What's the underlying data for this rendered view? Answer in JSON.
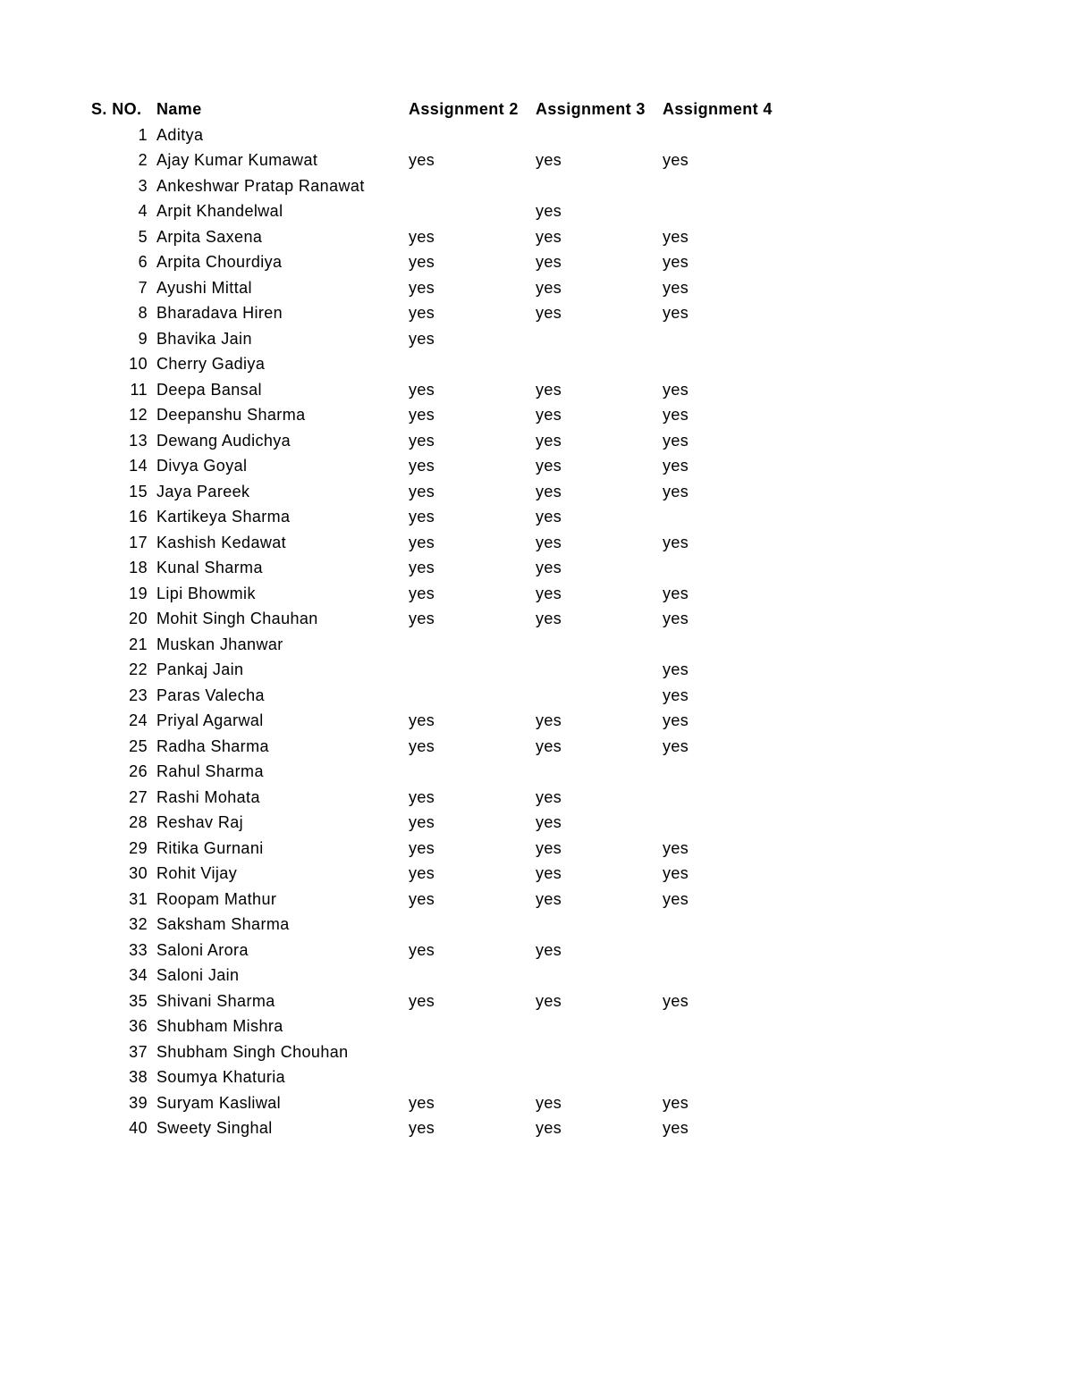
{
  "header": {
    "sno": "S. NO.",
    "name": "Name",
    "a2": "Assignment 2",
    "a3": "Assignment 3",
    "a4": "Assignment 4"
  },
  "rows": [
    {
      "sno": "1",
      "name": "Aditya",
      "a2": "",
      "a3": "",
      "a4": ""
    },
    {
      "sno": "2",
      "name": "Ajay Kumar Kumawat",
      "a2": "yes",
      "a3": "yes",
      "a4": "yes"
    },
    {
      "sno": "3",
      "name": "Ankeshwar Pratap Ranawat",
      "a2": "",
      "a3": "",
      "a4": ""
    },
    {
      "sno": "4",
      "name": "Arpit Khandelwal",
      "a2": "",
      "a3": "yes",
      "a4": ""
    },
    {
      "sno": "5",
      "name": "Arpita Saxena",
      "a2": "yes",
      "a3": "yes",
      "a4": "yes"
    },
    {
      "sno": "6",
      "name": "Arpita Chourdiya",
      "a2": "yes",
      "a3": "yes",
      "a4": "yes"
    },
    {
      "sno": "7",
      "name": "Ayushi Mittal",
      "a2": "yes",
      "a3": "yes",
      "a4": "yes"
    },
    {
      "sno": "8",
      "name": "Bharadava Hiren",
      "a2": "yes",
      "a3": "yes",
      "a4": "yes"
    },
    {
      "sno": "9",
      "name": "Bhavika Jain",
      "a2": "yes",
      "a3": "",
      "a4": ""
    },
    {
      "sno": "10",
      "name": "Cherry Gadiya",
      "a2": "",
      "a3": "",
      "a4": ""
    },
    {
      "sno": "11",
      "name": "Deepa Bansal",
      "a2": "yes",
      "a3": "yes",
      "a4": "yes"
    },
    {
      "sno": "12",
      "name": "Deepanshu Sharma",
      "a2": "yes",
      "a3": "yes",
      "a4": "yes"
    },
    {
      "sno": "13",
      "name": "Dewang Audichya",
      "a2": "yes",
      "a3": "yes",
      "a4": "yes"
    },
    {
      "sno": "14",
      "name": "Divya Goyal",
      "a2": "yes",
      "a3": "yes",
      "a4": "yes"
    },
    {
      "sno": "15",
      "name": "Jaya Pareek",
      "a2": "yes",
      "a3": "yes",
      "a4": "yes"
    },
    {
      "sno": "16",
      "name": "Kartikeya Sharma",
      "a2": "yes",
      "a3": "yes",
      "a4": ""
    },
    {
      "sno": "17",
      "name": "Kashish Kedawat",
      "a2": "yes",
      "a3": "yes",
      "a4": "yes"
    },
    {
      "sno": "18",
      "name": "Kunal Sharma",
      "a2": "yes",
      "a3": "yes",
      "a4": ""
    },
    {
      "sno": "19",
      "name": "Lipi Bhowmik",
      "a2": "yes",
      "a3": "yes",
      "a4": "yes"
    },
    {
      "sno": "20",
      "name": "Mohit Singh Chauhan",
      "a2": "yes",
      "a3": "yes",
      "a4": "yes"
    },
    {
      "sno": "21",
      "name": "Muskan Jhanwar",
      "a2": "",
      "a3": "",
      "a4": ""
    },
    {
      "sno": "22",
      "name": "Pankaj Jain",
      "a2": "",
      "a3": "",
      "a4": "yes"
    },
    {
      "sno": "23",
      "name": "Paras Valecha",
      "a2": "",
      "a3": "",
      "a4": "yes"
    },
    {
      "sno": "24",
      "name": "Priyal Agarwal",
      "a2": "yes",
      "a3": "yes",
      "a4": "yes"
    },
    {
      "sno": "25",
      "name": "Radha Sharma",
      "a2": "yes",
      "a3": "yes",
      "a4": "yes"
    },
    {
      "sno": "26",
      "name": "Rahul Sharma",
      "a2": "",
      "a3": "",
      "a4": ""
    },
    {
      "sno": "27",
      "name": "Rashi Mohata",
      "a2": "yes",
      "a3": "yes",
      "a4": ""
    },
    {
      "sno": "28",
      "name": "Reshav Raj",
      "a2": "yes",
      "a3": "yes",
      "a4": ""
    },
    {
      "sno": "29",
      "name": "Ritika Gurnani",
      "a2": "yes",
      "a3": "yes",
      "a4": "yes"
    },
    {
      "sno": "30",
      "name": "Rohit Vijay",
      "a2": "yes",
      "a3": "yes",
      "a4": "yes"
    },
    {
      "sno": "31",
      "name": "Roopam Mathur",
      "a2": "yes",
      "a3": "yes",
      "a4": "yes"
    },
    {
      "sno": "32",
      "name": "Saksham Sharma",
      "a2": "",
      "a3": "",
      "a4": ""
    },
    {
      "sno": "33",
      "name": "Saloni Arora",
      "a2": "yes",
      "a3": "yes",
      "a4": ""
    },
    {
      "sno": "34",
      "name": "Saloni Jain",
      "a2": "",
      "a3": "",
      "a4": ""
    },
    {
      "sno": "35",
      "name": "Shivani Sharma",
      "a2": "yes",
      "a3": "yes",
      "a4": "yes"
    },
    {
      "sno": "36",
      "name": "Shubham Mishra",
      "a2": "",
      "a3": "",
      "a4": ""
    },
    {
      "sno": "37",
      "name": "Shubham Singh Chouhan",
      "a2": "",
      "a3": "",
      "a4": ""
    },
    {
      "sno": "38",
      "name": "Soumya Khaturia",
      "a2": "",
      "a3": "",
      "a4": ""
    },
    {
      "sno": "39",
      "name": "Suryam Kasliwal",
      "a2": "yes",
      "a3": "yes",
      "a4": "yes"
    },
    {
      "sno": "40",
      "name": "Sweety Singhal",
      "a2": "yes",
      "a3": "yes",
      "a4": "yes"
    }
  ]
}
